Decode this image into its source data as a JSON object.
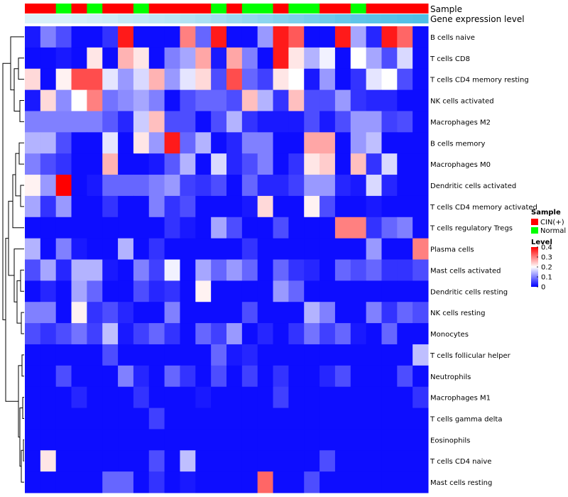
{
  "chart_data": {
    "type": "heatmap",
    "title": "",
    "annotation_tracks": [
      {
        "name": "Sample",
        "kind": "categorical"
      },
      {
        "name": "Gene expression level",
        "kind": "continuous"
      }
    ],
    "sample_groups": [
      "CIN(+)",
      "CIN(+)",
      "Normal",
      "CIN(+)",
      "Normal",
      "CIN(+)",
      "CIN(+)",
      "Normal",
      "CIN(+)",
      "CIN(+)",
      "CIN(+)",
      "CIN(+)",
      "Normal",
      "CIN(+)",
      "Normal",
      "Normal",
      "CIN(+)",
      "Normal",
      "Normal",
      "CIN(+)",
      "CIN(+)",
      "Normal",
      "CIN(+)",
      "CIN(+)",
      "CIN(+)",
      "CIN(+)"
    ],
    "expression_track": [
      0.02,
      0.03,
      0.03,
      0.04,
      0.05,
      0.06,
      0.08,
      0.09,
      0.1,
      0.11,
      0.13,
      0.15,
      0.17,
      0.19,
      0.21,
      0.23,
      0.25,
      0.27,
      0.29,
      0.31,
      0.33,
      0.35,
      0.36,
      0.37,
      0.38,
      0.39
    ],
    "rows": [
      "B cells naive",
      "T cells CD8",
      "T cells CD4 memory resting",
      "NK cells activated",
      "Macrophages M2",
      "B cells memory",
      "Macrophages M0",
      "Dendritic cells activated",
      "T cells CD4 memory activated",
      "T cells regulatory  Tregs",
      "Plasma cells",
      "Mast cells activated",
      "Dendritic cells resting",
      "NK cells resting",
      "Monocytes",
      "T cells follicular helper",
      "Neutrophils",
      "Macrophages M1",
      "T cells gamma delta",
      "Eosinophils",
      "T cells CD4 naive",
      "Mast cells resting"
    ],
    "values": [
      [
        0.02,
        0.1,
        0.06,
        0.01,
        0.01,
        0.04,
        0.38,
        0.01,
        0.01,
        0.01,
        0.3,
        0.08,
        0.38,
        0.01,
        0.01,
        0.12,
        0.38,
        0.33,
        0.01,
        0.01,
        0.38,
        0.13,
        0.03,
        0.38,
        0.32,
        0.01
      ],
      [
        0.01,
        0.01,
        0.02,
        0.01,
        0.22,
        0.01,
        0.26,
        0.22,
        0.01,
        0.1,
        0.13,
        0.27,
        0.02,
        0.27,
        0.1,
        0.01,
        0.38,
        0.22,
        0.14,
        0.19,
        0.01,
        0.2,
        0.13,
        0.06,
        0.17,
        0.01
      ],
      [
        0.23,
        0.01,
        0.21,
        0.34,
        0.34,
        0.18,
        0.12,
        0.17,
        0.26,
        0.12,
        0.18,
        0.23,
        0.06,
        0.34,
        0.08,
        0.05,
        0.22,
        0.2,
        0.02,
        0.12,
        0.01,
        0.04,
        0.18,
        0.2,
        0.06,
        0.01
      ],
      [
        0.02,
        0.23,
        0.11,
        0.2,
        0.3,
        0.09,
        0.11,
        0.13,
        0.1,
        0.01,
        0.06,
        0.08,
        0.08,
        0.06,
        0.25,
        0.14,
        0.04,
        0.25,
        0.06,
        0.06,
        0.12,
        0.04,
        0.03,
        0.03,
        0.01,
        0.01
      ],
      [
        0.1,
        0.1,
        0.1,
        0.1,
        0.1,
        0.07,
        0.03,
        0.16,
        0.25,
        0.06,
        0.06,
        0.01,
        0.06,
        0.14,
        0.04,
        0.02,
        0.02,
        0.02,
        0.06,
        0.02,
        0.06,
        0.12,
        0.12,
        0.05,
        0.06,
        0.01
      ],
      [
        0.14,
        0.14,
        0.06,
        0.01,
        0.01,
        0.18,
        0.01,
        0.22,
        0.12,
        0.38,
        0.08,
        0.14,
        0.01,
        0.03,
        0.1,
        0.1,
        0.01,
        0.01,
        0.27,
        0.27,
        0.01,
        0.12,
        0.15,
        0.01,
        0.01,
        0.01
      ],
      [
        0.1,
        0.06,
        0.04,
        0.01,
        0.01,
        0.26,
        0.01,
        0.01,
        0.02,
        0.07,
        0.14,
        0.01,
        0.17,
        0.03,
        0.06,
        0.1,
        0.01,
        0.04,
        0.22,
        0.24,
        0.01,
        0.25,
        0.04,
        0.17,
        0.01,
        0.01
      ],
      [
        0.21,
        0.12,
        0.4,
        0.01,
        0.02,
        0.08,
        0.08,
        0.08,
        0.1,
        0.12,
        0.05,
        0.04,
        0.06,
        0.01,
        0.08,
        0.03,
        0.03,
        0.05,
        0.12,
        0.12,
        0.03,
        0.02,
        0.17,
        0.03,
        0.01,
        0.01
      ],
      [
        0.13,
        0.04,
        0.12,
        0.01,
        0.01,
        0.04,
        0.01,
        0.01,
        0.1,
        0.04,
        0.06,
        0.01,
        0.01,
        0.01,
        0.02,
        0.23,
        0.01,
        0.01,
        0.21,
        0.06,
        0.01,
        0.01,
        0.02,
        0.01,
        0.01,
        0.01
      ],
      [
        0.01,
        0.01,
        0.01,
        0.01,
        0.01,
        0.01,
        0.01,
        0.01,
        0.01,
        0.04,
        0.02,
        0.01,
        0.13,
        0.06,
        0.01,
        0.01,
        0.06,
        0.01,
        0.01,
        0.01,
        0.3,
        0.3,
        0.04,
        0.08,
        0.1,
        0.01
      ],
      [
        0.14,
        0.01,
        0.1,
        0.02,
        0.01,
        0.01,
        0.14,
        0.01,
        0.04,
        0.01,
        0.01,
        0.01,
        0.01,
        0.01,
        0.04,
        0.01,
        0.01,
        0.01,
        0.01,
        0.01,
        0.01,
        0.01,
        0.12,
        0.01,
        0.01,
        0.3
      ],
      [
        0.06,
        0.13,
        0.03,
        0.14,
        0.14,
        0.02,
        0.01,
        0.1,
        0.05,
        0.19,
        0.01,
        0.13,
        0.08,
        0.12,
        0.08,
        0.01,
        0.08,
        0.04,
        0.03,
        0.01,
        0.08,
        0.06,
        0.08,
        0.04,
        0.04,
        0.06
      ],
      [
        0.01,
        0.03,
        0.01,
        0.13,
        0.08,
        0.01,
        0.01,
        0.06,
        0.03,
        0.04,
        0.01,
        0.21,
        0.01,
        0.01,
        0.01,
        0.01,
        0.12,
        0.08,
        0.01,
        0.01,
        0.01,
        0.01,
        0.01,
        0.01,
        0.01,
        0.01
      ],
      [
        0.1,
        0.1,
        0.01,
        0.21,
        0.04,
        0.06,
        0.03,
        0.01,
        0.01,
        0.1,
        0.01,
        0.01,
        0.01,
        0.01,
        0.06,
        0.01,
        0.01,
        0.01,
        0.14,
        0.1,
        0.01,
        0.01,
        0.1,
        0.04,
        0.08,
        0.06
      ],
      [
        0.06,
        0.04,
        0.06,
        0.09,
        0.05,
        0.15,
        0.02,
        0.05,
        0.08,
        0.04,
        0.01,
        0.08,
        0.05,
        0.12,
        0.01,
        0.03,
        0.01,
        0.04,
        0.09,
        0.05,
        0.08,
        0.02,
        0.01,
        0.08,
        0.01,
        0.01
      ],
      [
        0.01,
        0.01,
        0.01,
        0.01,
        0.01,
        0.06,
        0.01,
        0.01,
        0.01,
        0.01,
        0.01,
        0.01,
        0.08,
        0.02,
        0.03,
        0.01,
        0.01,
        0.01,
        0.01,
        0.01,
        0.01,
        0.01,
        0.01,
        0.01,
        0.01,
        0.15
      ],
      [
        0.01,
        0.01,
        0.06,
        0.01,
        0.01,
        0.01,
        0.1,
        0.03,
        0.01,
        0.08,
        0.04,
        0.01,
        0.06,
        0.01,
        0.05,
        0.01,
        0.04,
        0.01,
        0.01,
        0.03,
        0.06,
        0.01,
        0.01,
        0.01,
        0.06,
        0.01
      ],
      [
        0.01,
        0.01,
        0.01,
        0.03,
        0.01,
        0.01,
        0.01,
        0.04,
        0.01,
        0.01,
        0.01,
        0.02,
        0.01,
        0.01,
        0.01,
        0.01,
        0.05,
        0.01,
        0.01,
        0.01,
        0.01,
        0.01,
        0.01,
        0.01,
        0.01,
        0.04
      ],
      [
        0.01,
        0.01,
        0.01,
        0.01,
        0.01,
        0.01,
        0.01,
        0.01,
        0.05,
        0.01,
        0.01,
        0.01,
        0.01,
        0.01,
        0.01,
        0.01,
        0.01,
        0.01,
        0.01,
        0.01,
        0.01,
        0.01,
        0.01,
        0.01,
        0.01,
        0.01
      ],
      [
        0.01,
        0.01,
        0.01,
        0.01,
        0.01,
        0.01,
        0.01,
        0.01,
        0.01,
        0.01,
        0.01,
        0.01,
        0.01,
        0.01,
        0.01,
        0.01,
        0.01,
        0.01,
        0.01,
        0.01,
        0.01,
        0.01,
        0.01,
        0.01,
        0.01,
        0.01
      ],
      [
        0.01,
        0.22,
        0.01,
        0.01,
        0.01,
        0.01,
        0.01,
        0.01,
        0.06,
        0.01,
        0.15,
        0.01,
        0.01,
        0.01,
        0.01,
        0.01,
        0.01,
        0.01,
        0.01,
        0.06,
        0.01,
        0.01,
        0.01,
        0.01,
        0.01,
        0.01
      ],
      [
        0.01,
        0.01,
        0.01,
        0.01,
        0.01,
        0.08,
        0.08,
        0.01,
        0.04,
        0.01,
        0.02,
        0.01,
        0.01,
        0.01,
        0.01,
        0.32,
        0.01,
        0.01,
        0.06,
        0.01,
        0.01,
        0.01,
        0.01,
        0.01,
        0.01,
        0.01
      ]
    ],
    "sample_legend": {
      "title": "Sample",
      "items": [
        "CIN(+)",
        "Normal"
      ]
    },
    "level_legend": {
      "title": "Level",
      "ticks": [
        "0.4",
        "0.3",
        "0.2",
        "0.1",
        "0"
      ]
    },
    "value_range": [
      0,
      0.4
    ],
    "colors": {
      "low": "#0000ff",
      "mid": "#ffffff",
      "high": "#ff0000",
      "cin": "#ff0000",
      "normal": "#00ff00",
      "expr_low": "#e4f4fb",
      "expr_high": "#4fbfe6"
    }
  }
}
